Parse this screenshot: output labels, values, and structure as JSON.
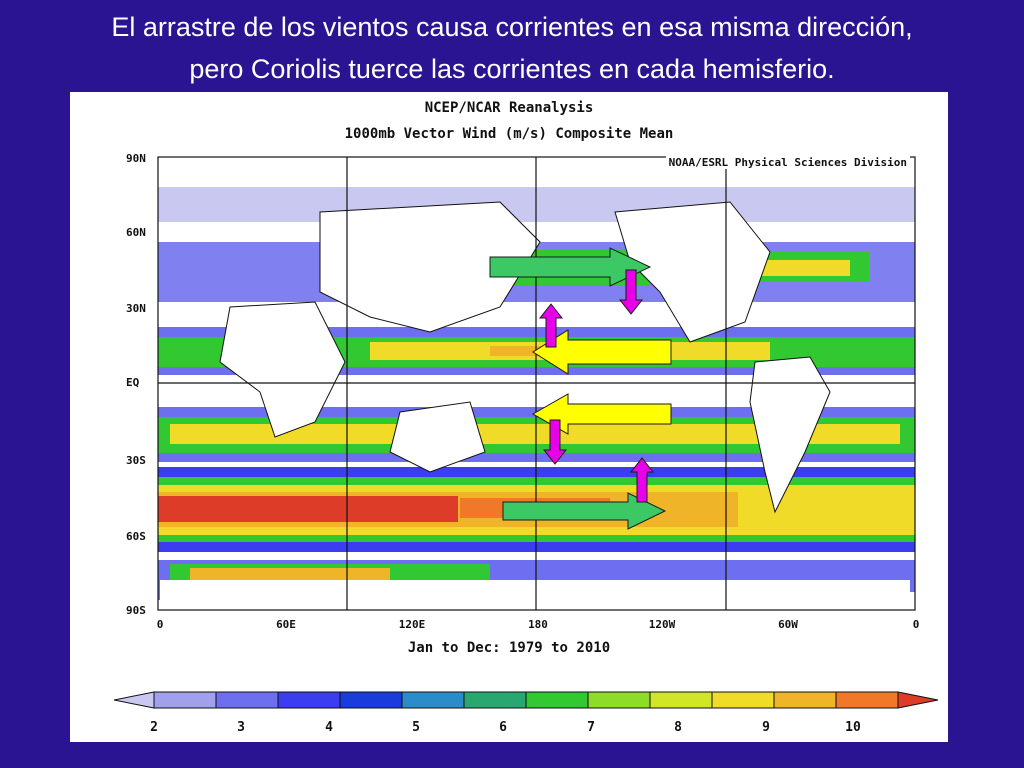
{
  "slide": {
    "title_line1": "El arrastre de los vientos causa corrientes en esa misma dirección,",
    "title_line2": "pero Coriolis tuerce las corrientes en cada hemisferio."
  },
  "figure": {
    "title1": "NCEP/NCAR Reanalysis",
    "title2": "1000mb Vector Wind (m/s) Composite Mean",
    "credit": "NOAA/ESRL Physical Sciences Division",
    "period": "Jan to Dec: 1979 to 2010",
    "lat_labels": [
      "90N",
      "60N",
      "30N",
      "EQ",
      "30S",
      "60S",
      "90S"
    ],
    "lon_labels": [
      "0",
      "60E",
      "120E",
      "180",
      "120W",
      "60W",
      "0"
    ],
    "colorbar_labels": [
      "2",
      "3",
      "4",
      "5",
      "6",
      "7",
      "8",
      "9",
      "10"
    ],
    "colorbar_colors": [
      "#c8c8f0",
      "#a0a0ec",
      "#6e6ef0",
      "#3c3cf0",
      "#1a3cdc",
      "#2a8cc8",
      "#28a870",
      "#32c832",
      "#8cdc28",
      "#d2e628",
      "#f0dc28",
      "#f0b428",
      "#f07828",
      "#dc3c28"
    ],
    "arrow_colors": {
      "westerly": "#3cc864",
      "trade": "#ffff00",
      "coriolis": "#e800e8"
    }
  }
}
